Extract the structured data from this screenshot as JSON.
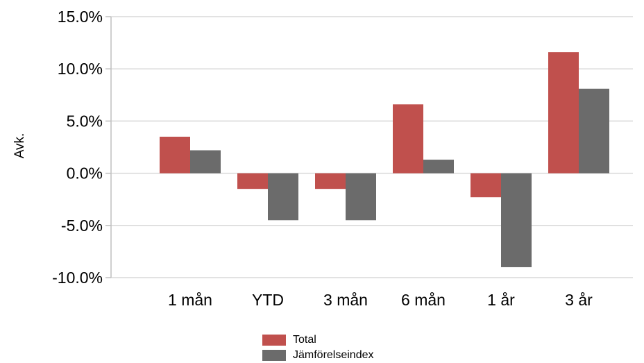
{
  "chart_data": {
    "type": "bar",
    "categories": [
      "1 mån",
      "YTD",
      "3 mån",
      "6 mån",
      "1 år",
      "3 år"
    ],
    "series": [
      {
        "name": "Total",
        "color": "#c0504d",
        "values": [
          3.5,
          -1.5,
          -1.5,
          6.6,
          -2.3,
          11.6
        ]
      },
      {
        "name": "Jämförelseindex",
        "color": "#6b6b6b",
        "values": [
          2.2,
          -4.5,
          -4.5,
          1.3,
          -9.0,
          8.1
        ]
      }
    ],
    "ylabel": "Avk.",
    "ylim": [
      -10,
      15
    ],
    "yticks": [
      15,
      10,
      5,
      0,
      -5,
      -10
    ],
    "ytick_labels": [
      "15.0%",
      "10.0%",
      "5.0%",
      "0.0%",
      "-5.0%",
      "-10.0%"
    ],
    "grid": true,
    "legend_position": "bottom-center"
  }
}
